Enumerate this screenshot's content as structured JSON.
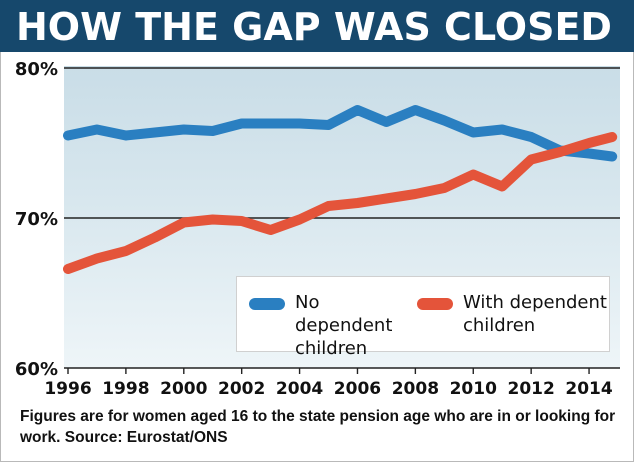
{
  "title": "HOW THE GAP WAS CLOSED",
  "caption": "Figures are for women aged 16 to the state pension age who are in or looking for work. Source: Eurostat/ONS",
  "colors": {
    "header": "#16486c",
    "no_dependent": "#2a7fc1",
    "with_dependent": "#e4543a"
  },
  "chart_data": {
    "type": "line",
    "title": "HOW THE GAP WAS CLOSED",
    "xlabel": "",
    "ylabel": "",
    "xlim": [
      1996,
      2015
    ],
    "ylim": [
      60,
      80
    ],
    "yticks": [
      "80%",
      "70%",
      "60%"
    ],
    "yticks_values": [
      80,
      70,
      60
    ],
    "xticks": [
      "1996",
      "1998",
      "2000",
      "2002",
      "2004",
      "2006",
      "2008",
      "2010",
      "2012",
      "2014"
    ],
    "grid": "horizontal",
    "legend_position": "lower-right",
    "series": [
      {
        "name": "No dependent children",
        "x": [
          1996,
          1997,
          1998,
          1999,
          2000,
          2001,
          2002,
          2003,
          2004,
          2005,
          2006,
          2007,
          2008,
          2009,
          2010,
          2011,
          2012,
          2013,
          2014,
          2014.8
        ],
        "values": [
          75.5,
          75.9,
          75.5,
          75.7,
          75.9,
          75.8,
          76.3,
          76.3,
          76.3,
          76.2,
          77.2,
          76.4,
          77.2,
          76.5,
          75.7,
          75.9,
          75.4,
          74.5,
          74.3,
          74.1
        ]
      },
      {
        "name": "With dependent children",
        "x": [
          1996,
          1997,
          1998,
          1999,
          2000,
          2001,
          2002,
          2003,
          2004,
          2005,
          2006,
          2007,
          2008,
          2009,
          2010,
          2011,
          2012,
          2013,
          2014,
          2014.8
        ],
        "values": [
          66.6,
          67.3,
          67.8,
          68.7,
          69.7,
          69.9,
          69.8,
          69.2,
          69.9,
          70.8,
          71.0,
          71.3,
          71.6,
          72.0,
          72.9,
          72.1,
          73.9,
          74.4,
          75.0,
          75.4
        ]
      }
    ]
  }
}
